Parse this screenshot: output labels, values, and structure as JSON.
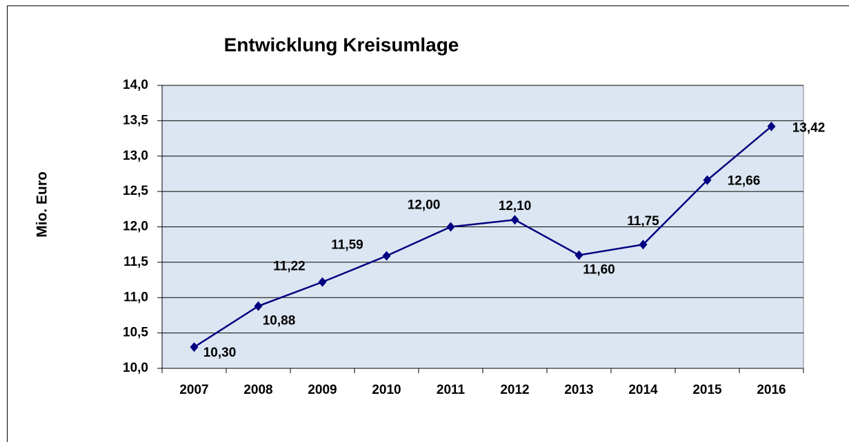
{
  "chart_data": {
    "type": "line",
    "title": "Entwicklung Kreisumlage",
    "ylabel": "Mio. Euro",
    "categories": [
      "2007",
      "2008",
      "2009",
      "2010",
      "2011",
      "2012",
      "2013",
      "2014",
      "2015",
      "2016"
    ],
    "series": [
      {
        "color": "#000080",
        "values": [
          10.3,
          10.88,
          11.22,
          11.59,
          12.0,
          12.1,
          11.6,
          11.75,
          12.66,
          13.42
        ],
        "value_labels": [
          "10,30",
          "10,88",
          "11,22",
          "11,59",
          "12,00",
          "12,10",
          "11,60",
          "11,75",
          "12,66",
          "13,42"
        ]
      }
    ],
    "ylim": [
      10,
      14
    ],
    "yticks": [
      {
        "value": 10,
        "label": "10,0"
      },
      {
        "value": 10.5,
        "label": "10,5"
      },
      {
        "value": 11,
        "label": "11,0"
      },
      {
        "value": 11.5,
        "label": "11,5"
      },
      {
        "value": 12,
        "label": "12,0"
      },
      {
        "value": 12.5,
        "label": "12,5"
      },
      {
        "value": 13,
        "label": "13,0"
      },
      {
        "value": 13.5,
        "label": "13,5"
      },
      {
        "value": 14,
        "label": "14,0"
      }
    ],
    "grid": true,
    "background": "#dce6f2"
  }
}
